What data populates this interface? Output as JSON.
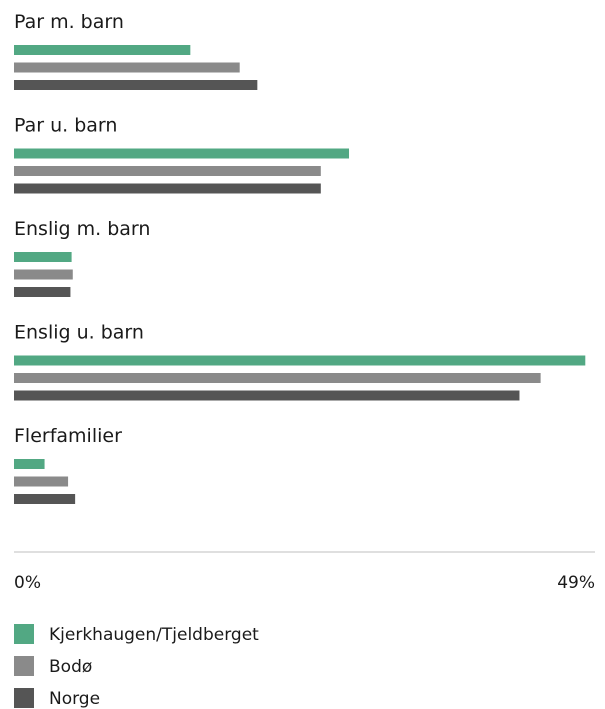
{
  "chart_data": {
    "type": "bar",
    "orientation": "horizontal",
    "categories": [
      "Par m. barn",
      "Par u. barn",
      "Enslig m. barn",
      "Enslig u. barn",
      "Flerfamilier"
    ],
    "series": [
      {
        "name": "Kjerkhaugen/Tjeldberget",
        "color": "#52a883",
        "values": [
          15.0,
          28.5,
          4.9,
          48.6,
          2.6
        ]
      },
      {
        "name": "Bodø",
        "color": "#8a8a8a",
        "values": [
          19.2,
          26.1,
          5.0,
          44.8,
          4.6
        ]
      },
      {
        "name": "Norge",
        "color": "#555555",
        "values": [
          20.7,
          26.1,
          4.8,
          43.0,
          5.2
        ]
      }
    ],
    "xlim": [
      0,
      49
    ],
    "x_tick_labels": [
      "0%",
      "49%"
    ],
    "legend_position": "bottom-left",
    "grid": false
  }
}
